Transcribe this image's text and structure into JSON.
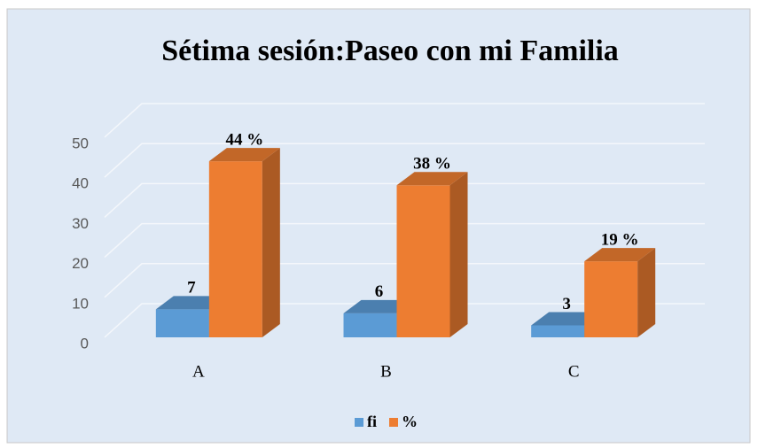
{
  "chart_data": {
    "type": "bar3d",
    "title": "Sétima  sesión:Paseo con mi  Familia",
    "categories": [
      "A",
      "B",
      "C"
    ],
    "series": [
      {
        "name": "fi",
        "color": "#5b9bd5",
        "values": [
          7,
          6,
          3
        ]
      },
      {
        "name": "%",
        "color": "#ed7d31",
        "values": [
          44,
          38,
          19
        ],
        "value_labels": [
          "44 %",
          "38 %",
          "19 %"
        ]
      }
    ],
    "ylim": [
      0,
      50
    ],
    "yticks": [
      0,
      10,
      20,
      30,
      40,
      50
    ],
    "grid": true,
    "legend": "bottom"
  }
}
